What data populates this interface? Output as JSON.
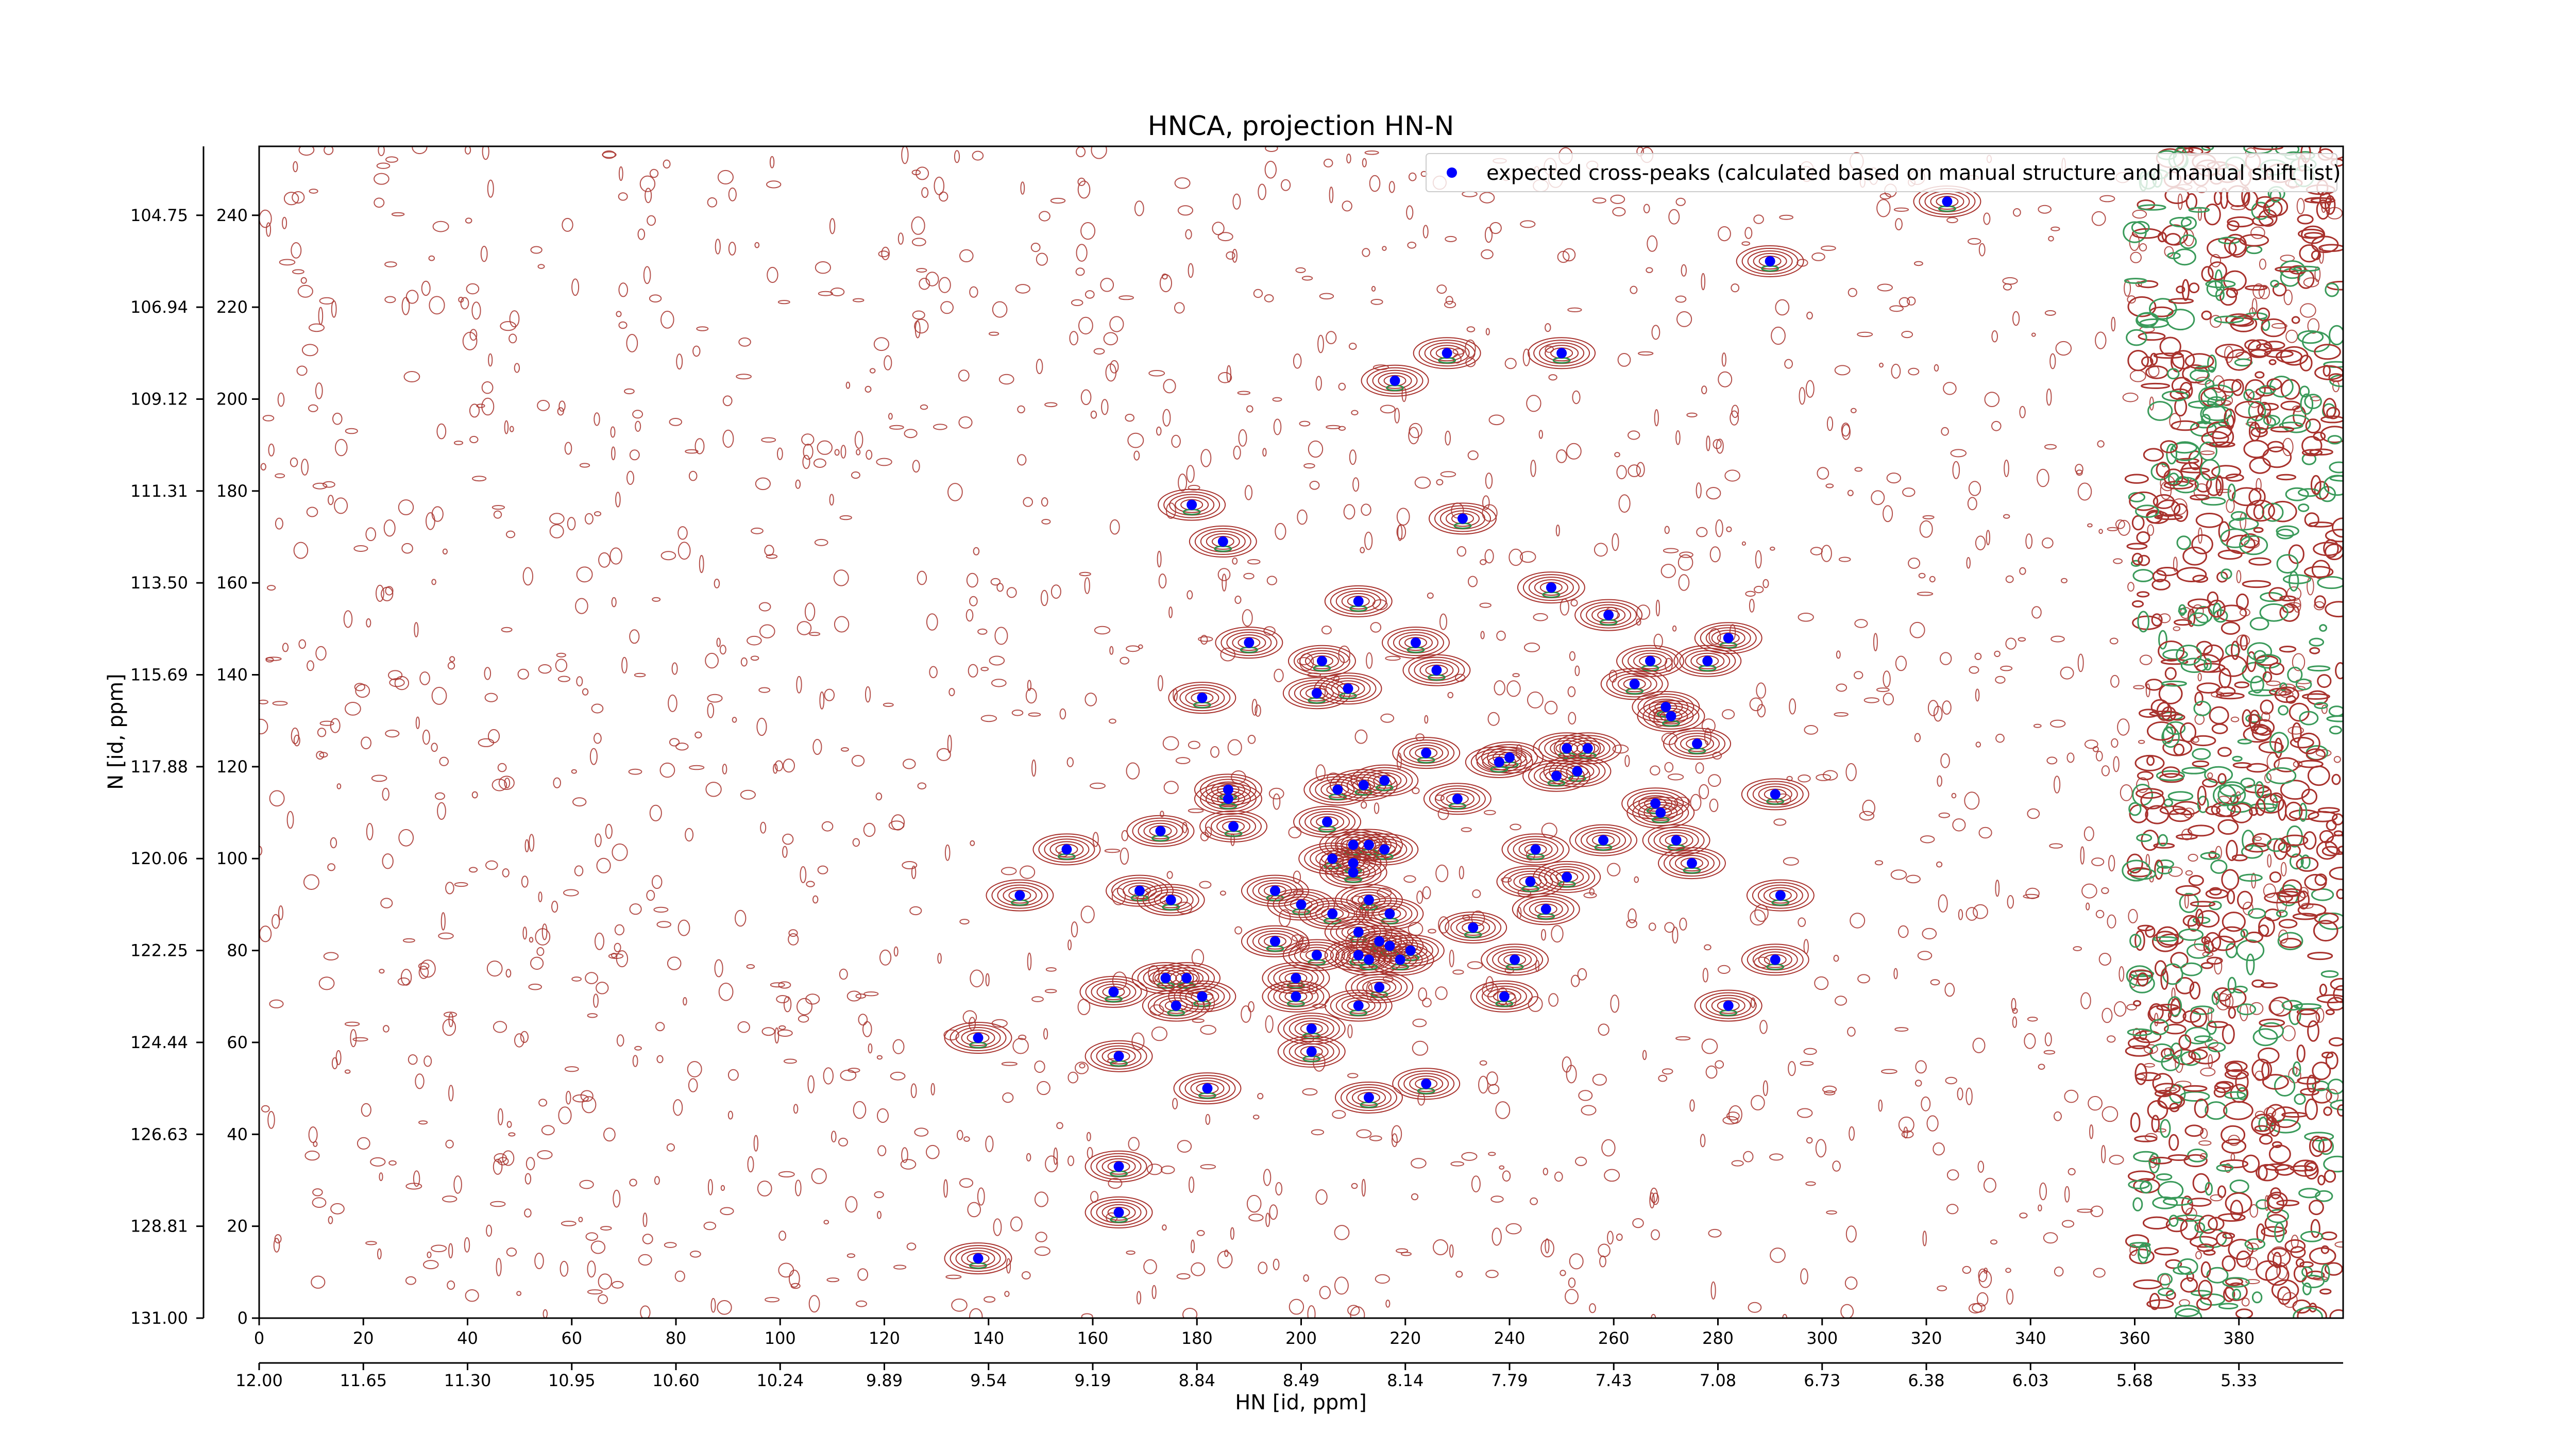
{
  "chart_data": {
    "type": "scatter",
    "title": "HNCA, projection HN-N",
    "xlabel": "HN [id, ppm]",
    "ylabel": "N [id, ppm]",
    "x": [
      324,
      290,
      250,
      228,
      218,
      179,
      231,
      185,
      248,
      211,
      259,
      190,
      222,
      282,
      278,
      204,
      267,
      226,
      264,
      181,
      203,
      209,
      270,
      271,
      276,
      224,
      251,
      255,
      240,
      238,
      253,
      249,
      207,
      212,
      216,
      186,
      186,
      230,
      268,
      269,
      291,
      205,
      187,
      173,
      272,
      258,
      155,
      210,
      213,
      216,
      206,
      245,
      275,
      210,
      210,
      251,
      244,
      169,
      195,
      213,
      146,
      175,
      292,
      200,
      247,
      206,
      217,
      233,
      211,
      195,
      215,
      217,
      221,
      203,
      211,
      219,
      213,
      241,
      291,
      174,
      178,
      199,
      215,
      164,
      181,
      199,
      239,
      176,
      211,
      282,
      138,
      202,
      202,
      165,
      224,
      182,
      213,
      165,
      165,
      138
    ],
    "series": [
      {
        "name": "expected cross-peaks (calculated based on manual structure and manual shift list)",
        "color": "#0000ff",
        "values": [
          243,
          230,
          210,
          210,
          204,
          177,
          174,
          169,
          159,
          156,
          153,
          147,
          147,
          148,
          143,
          143,
          143,
          141,
          138,
          135,
          136,
          137,
          133,
          131,
          125,
          123,
          124,
          124,
          122,
          121,
          119,
          118,
          115,
          116,
          117,
          115,
          113,
          113,
          112,
          110,
          114,
          108,
          107,
          106,
          104,
          104,
          102,
          103,
          103,
          102,
          100,
          102,
          99,
          99,
          97,
          96,
          95,
          93,
          93,
          91,
          92,
          91,
          92,
          90,
          89,
          88,
          88,
          85,
          84,
          82,
          82,
          81,
          80,
          79,
          79,
          78,
          78,
          78,
          78,
          74,
          74,
          74,
          72,
          71,
          70,
          70,
          70,
          68,
          68,
          68,
          61,
          63,
          58,
          57,
          51,
          50,
          48,
          33,
          23,
          13
        ]
      }
    ],
    "xlim": [
      0,
      400
    ],
    "ylim": [
      0,
      255
    ],
    "xticks": [
      0,
      20,
      40,
      60,
      80,
      100,
      120,
      140,
      160,
      180,
      200,
      220,
      240,
      260,
      280,
      300,
      320,
      340,
      360,
      380
    ],
    "yticks": [
      0,
      20,
      40,
      60,
      80,
      100,
      120,
      140,
      160,
      180,
      200,
      220,
      240
    ],
    "x2ticks": [
      {
        "value": 0,
        "label": "12.00"
      },
      {
        "value": 20,
        "label": "11.65"
      },
      {
        "value": 40,
        "label": "11.30"
      },
      {
        "value": 60,
        "label": "10.95"
      },
      {
        "value": 80,
        "label": "10.60"
      },
      {
        "value": 100,
        "label": "10.24"
      },
      {
        "value": 120,
        "label": "9.89"
      },
      {
        "value": 140,
        "label": "9.54"
      },
      {
        "value": 160,
        "label": "9.19"
      },
      {
        "value": 180,
        "label": "8.84"
      },
      {
        "value": 200,
        "label": "8.49"
      },
      {
        "value": 220,
        "label": "8.14"
      },
      {
        "value": 240,
        "label": "7.79"
      },
      {
        "value": 260,
        "label": "7.43"
      },
      {
        "value": 280,
        "label": "7.08"
      },
      {
        "value": 300,
        "label": "6.73"
      },
      {
        "value": 320,
        "label": "6.38"
      },
      {
        "value": 340,
        "label": "6.03"
      },
      {
        "value": 360,
        "label": "5.68"
      },
      {
        "value": 380,
        "label": "5.33"
      }
    ],
    "y2ticks": [
      {
        "value": 0,
        "label": "131.00"
      },
      {
        "value": 20,
        "label": "128.81"
      },
      {
        "value": 40,
        "label": "126.63"
      },
      {
        "value": 60,
        "label": "124.44"
      },
      {
        "value": 80,
        "label": "122.25"
      },
      {
        "value": 100,
        "label": "120.06"
      },
      {
        "value": 120,
        "label": "117.88"
      },
      {
        "value": 140,
        "label": "115.69"
      },
      {
        "value": 160,
        "label": "113.50"
      },
      {
        "value": 180,
        "label": "111.31"
      },
      {
        "value": 200,
        "label": "109.12"
      },
      {
        "value": 220,
        "label": "106.94"
      },
      {
        "value": 240,
        "label": "104.75"
      }
    ],
    "legend": "upper right"
  }
}
